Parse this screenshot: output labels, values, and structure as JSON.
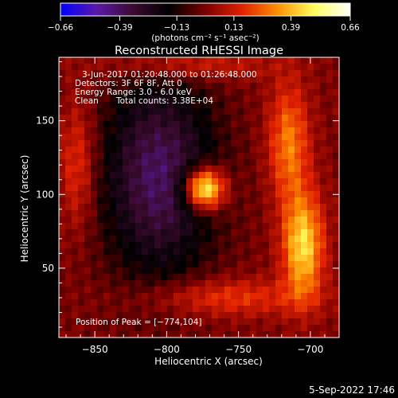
{
  "chart_data": {
    "type": "heatmap",
    "title": "Reconstructed RHESSI Image",
    "xlabel": "Heliocentric X (arcsec)",
    "ylabel": "Heliocentric Y (arcsec)",
    "xlim": [
      -875,
      -680
    ],
    "ylim": [
      3,
      193
    ],
    "x_ticks": [
      -850,
      -800,
      -750,
      -700
    ],
    "x_tick_labels": [
      "−850",
      "−800",
      "−750",
      "−700"
    ],
    "y_ticks": [
      50,
      100,
      150
    ],
    "y_tick_labels": [
      "50",
      "100",
      "150"
    ],
    "grid": false,
    "colorbar": {
      "range": [
        -0.66,
        0.66
      ],
      "ticks": [
        -0.66,
        -0.39,
        -0.13,
        0.13,
        0.39,
        0.66
      ],
      "tick_labels": [
        "−0.66",
        "−0.39",
        "−0.13",
        "0.13",
        "0.39",
        "0.66"
      ],
      "units_label": "(photons cm⁻² s⁻¹ asec⁻²)",
      "colormap": [
        "#0000ff",
        "#5a1aa6",
        "#3b0a30",
        "#000000",
        "#7a0000",
        "#e02000",
        "#ff9000",
        "#ffff60",
        "#ffffff"
      ]
    },
    "sources": [
      {
        "name": "peak",
        "x": -774,
        "y": 104,
        "peak": 0.66,
        "sigma": 10
      },
      {
        "name": "negative-plateau",
        "x": -805,
        "y": 112,
        "peak": -0.4,
        "sx": 28,
        "sy": 48
      },
      {
        "name": "right-arc-lower",
        "x": -705,
        "y": 65,
        "peak": 0.45,
        "sx": 10,
        "sy": 25
      },
      {
        "name": "right-arc-upper",
        "x": -715,
        "y": 135,
        "peak": 0.3,
        "sx": 10,
        "sy": 28
      },
      {
        "name": "left-column",
        "x": -862,
        "y": 120,
        "peak": 0.2,
        "sx": 9,
        "sy": 30
      },
      {
        "name": "top-band",
        "x": -790,
        "y": 188,
        "peak": 0.18,
        "sx": 40,
        "sy": 8
      },
      {
        "name": "bottom-band",
        "x": -760,
        "y": 30,
        "peak": 0.2,
        "sx": 40,
        "sy": 9
      }
    ],
    "annotations": {
      "time_range": "3-Jun-2017 01:20:48.000 to 01:26:48.000",
      "detectors": "Detectors: 3F 6F 8F, Att 0",
      "energy": "Energy Range: 3.0 - 6.0 keV",
      "method": "Clean",
      "counts": "Total counts: 3.38E+04",
      "peak": "Position of Peak = [−774,104]"
    },
    "footer_date": "5-Sep-2022 17:46"
  }
}
